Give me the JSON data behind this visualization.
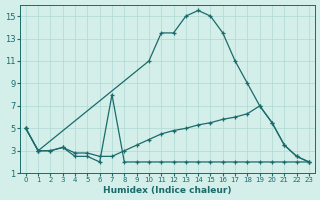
{
  "xlabel": "Humidex (Indice chaleur)",
  "background_color": "#d4eeea",
  "line_color": "#1a6b6b",
  "grid_color": "#b0d8d4",
  "xlim": [
    -0.5,
    23.5
  ],
  "ylim": [
    1,
    16
  ],
  "yticks": [
    1,
    3,
    5,
    7,
    9,
    11,
    13,
    15
  ],
  "xticks": [
    0,
    1,
    2,
    3,
    4,
    5,
    6,
    7,
    8,
    9,
    10,
    11,
    12,
    13,
    14,
    15,
    16,
    17,
    18,
    19,
    20,
    21,
    22,
    23
  ],
  "series": [
    {
      "x": [
        0,
        1,
        10,
        11,
        12,
        13,
        14,
        15,
        16,
        17,
        18,
        19,
        20,
        21,
        22,
        23
      ],
      "y": [
        5,
        3,
        11,
        13.5,
        13.5,
        15,
        15.5,
        15,
        13.5,
        11,
        9,
        7,
        5.5,
        3.5,
        2.5,
        2
      ]
    },
    {
      "x": [
        0,
        1,
        2,
        3,
        4,
        5,
        6,
        7,
        8,
        9,
        10,
        11,
        12,
        13,
        14,
        15,
        16,
        17,
        18,
        19,
        20,
        21,
        22,
        23
      ],
      "y": [
        5,
        3,
        3,
        3.3,
        2.8,
        2.8,
        2.5,
        2.5,
        3.0,
        3.5,
        4.0,
        4.5,
        4.8,
        5.0,
        5.3,
        5.5,
        5.8,
        6.0,
        6.3,
        7.0,
        5.5,
        3.5,
        2.5,
        2
      ]
    },
    {
      "x": [
        0,
        1,
        2,
        3,
        4,
        5,
        6,
        7,
        8,
        9,
        10,
        11,
        12,
        13,
        14,
        15,
        16,
        17,
        18,
        19,
        20,
        21,
        22,
        23
      ],
      "y": [
        5,
        3,
        3,
        3.3,
        2.5,
        2.5,
        2,
        8,
        2,
        2,
        2,
        2,
        2,
        2,
        2,
        2,
        2,
        2,
        2,
        2,
        2,
        2,
        2,
        2
      ]
    }
  ]
}
